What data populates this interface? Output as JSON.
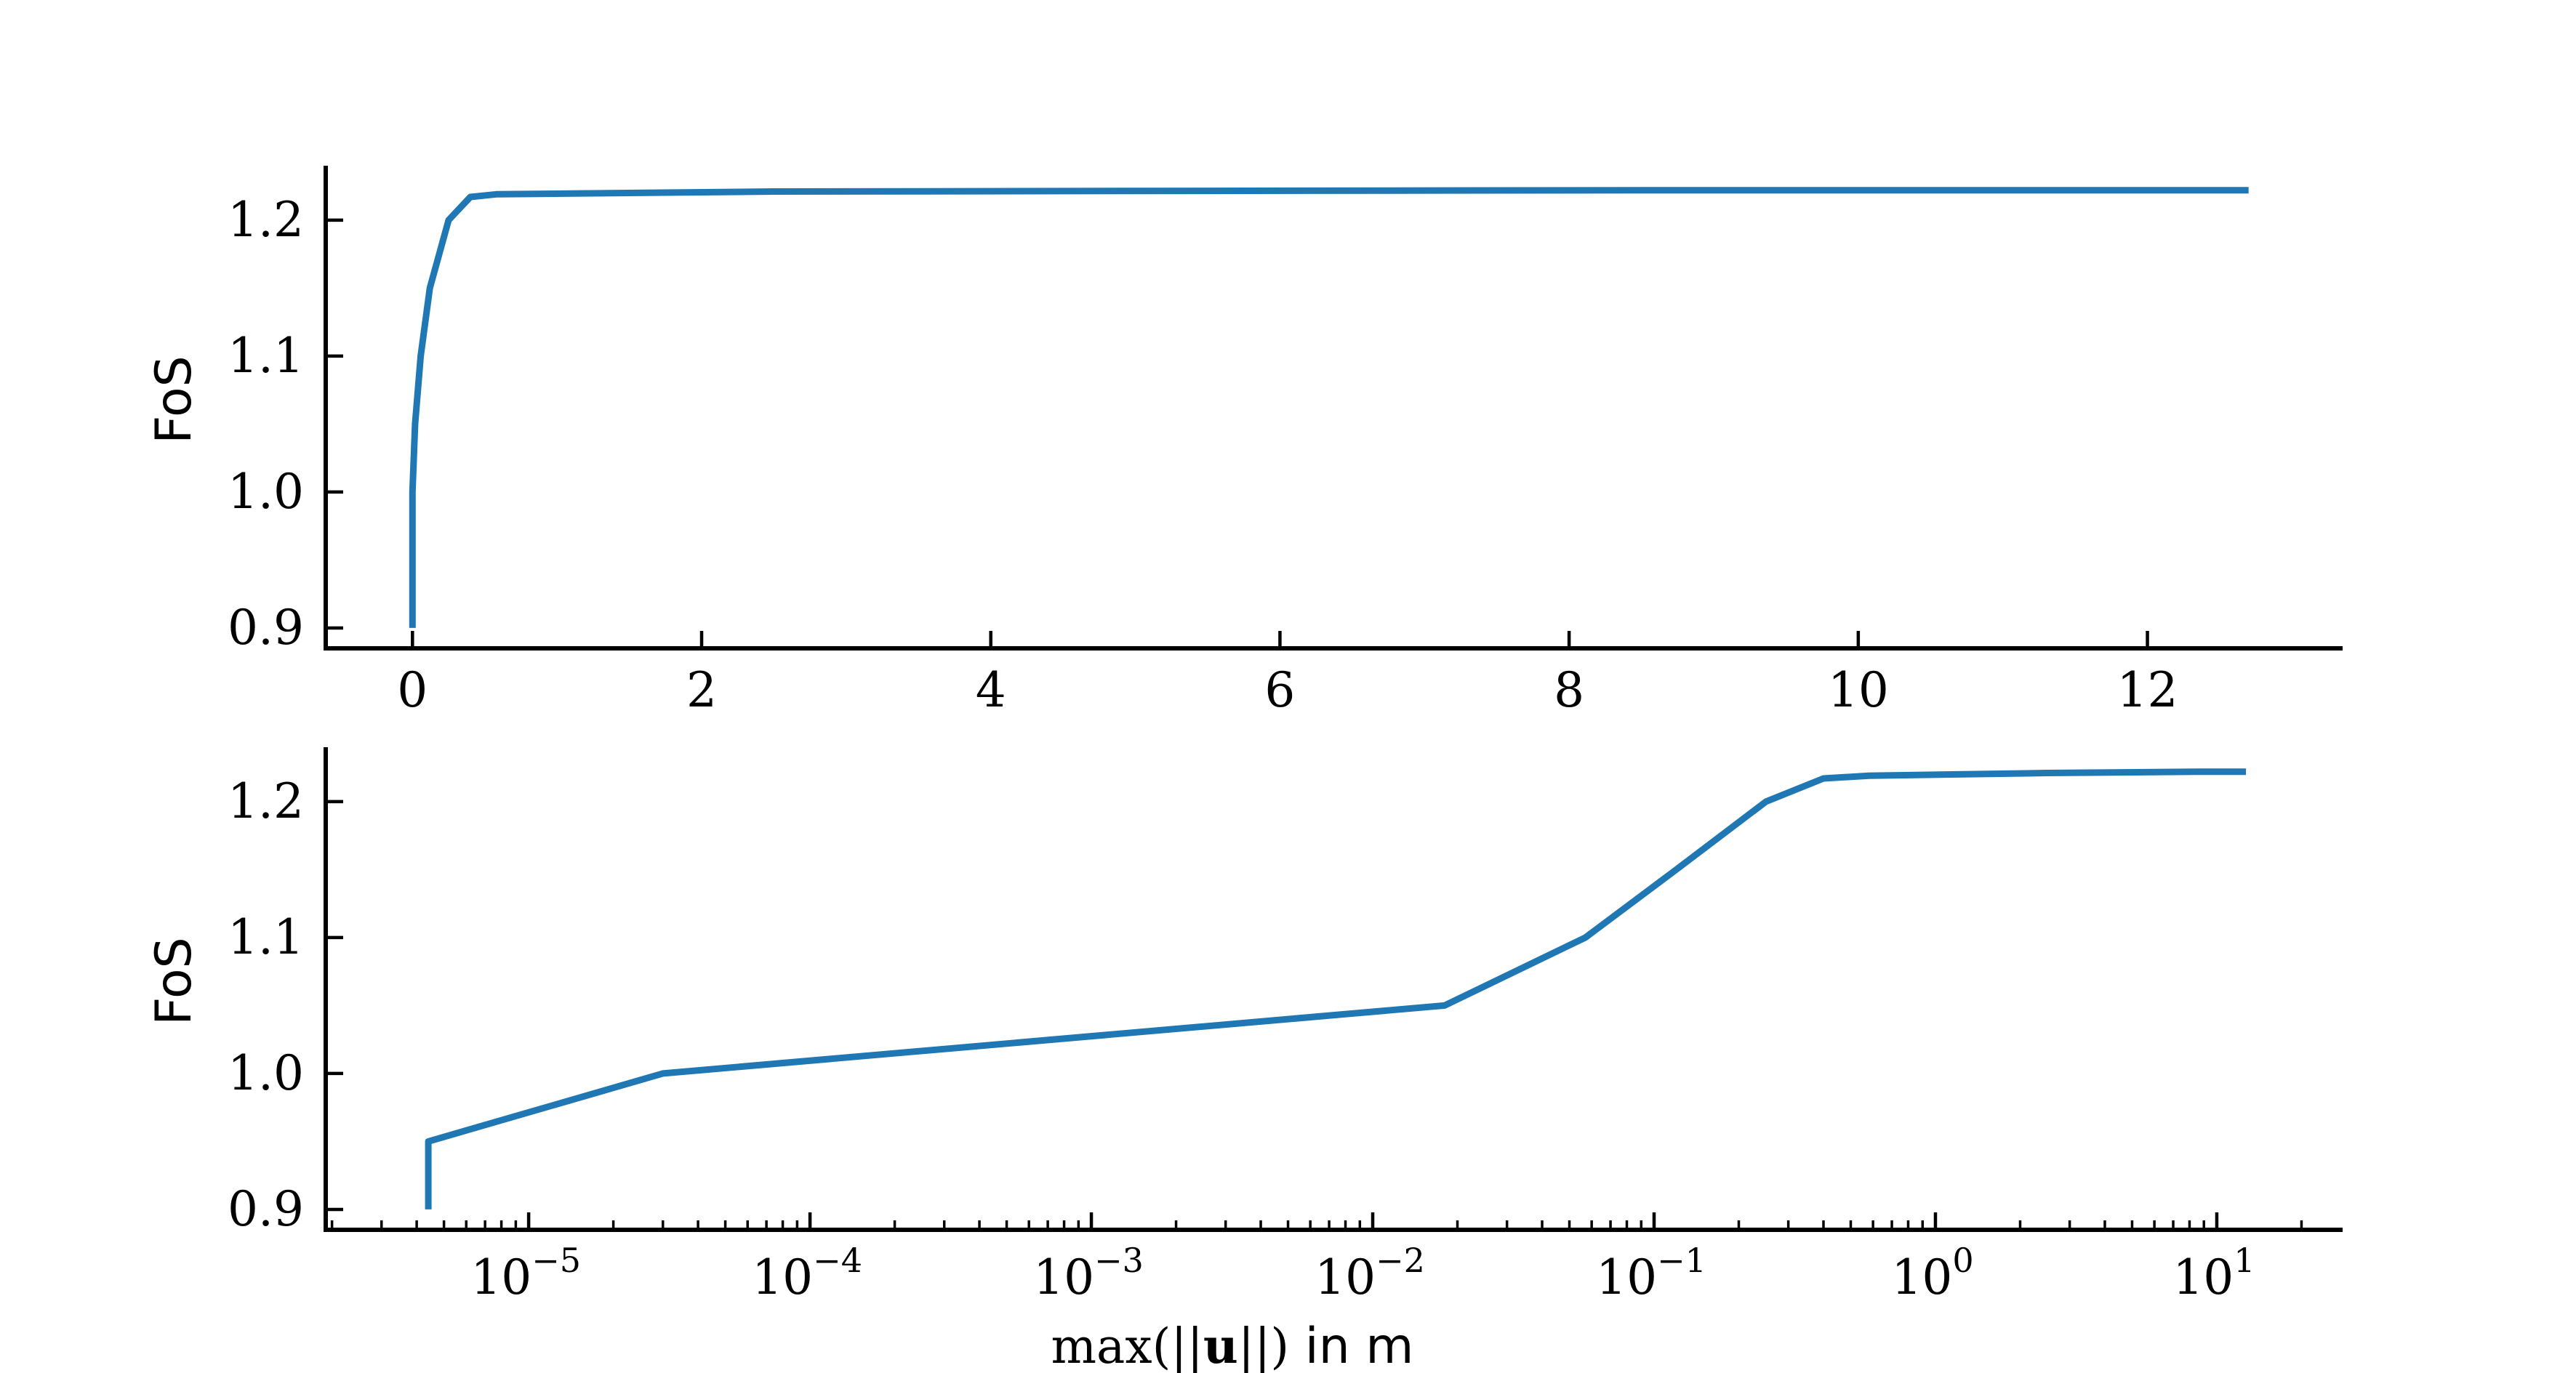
{
  "chart_data": [
    {
      "type": "line",
      "title": "",
      "xlabel": "",
      "ylabel": "FoS",
      "xscale": "linear",
      "xlim": [
        -0.6,
        13.35
      ],
      "ylim": [
        0.885,
        1.24
      ],
      "xticks": [
        0,
        2,
        4,
        6,
        8,
        10,
        12
      ],
      "xtick_labels": [
        "0",
        "2",
        "4",
        "6",
        "8",
        "10",
        "12"
      ],
      "yticks": [
        0.9,
        1.0,
        1.1,
        1.2
      ],
      "ytick_labels": [
        "0.9",
        "1.0",
        "1.1",
        "1.2"
      ],
      "grid": false,
      "series": [
        {
          "color": "#1f77b4",
          "x": [
            4.4e-06,
            4.4e-06,
            3e-05,
            0.018,
            0.057,
            0.12,
            0.25,
            0.4,
            0.58,
            2.5,
            8.5,
            12.7
          ],
          "y": [
            0.9,
            0.95,
            1.0,
            1.05,
            1.1,
            1.15,
            1.2,
            1.217,
            1.219,
            1.221,
            1.222,
            1.222
          ]
        }
      ]
    },
    {
      "type": "line",
      "title": "",
      "xlabel": "max(||u||) in m",
      "ylabel": "FoS",
      "xscale": "log",
      "xlim": [
        1.9e-06,
        28
      ],
      "ylim": [
        0.885,
        1.24
      ],
      "xticks": [
        1e-05,
        0.0001,
        0.001,
        0.01,
        0.1,
        1,
        10
      ],
      "xtick_labels": [
        {
          "base": "10",
          "exp": "−5"
        },
        {
          "base": "10",
          "exp": "−4"
        },
        {
          "base": "10",
          "exp": "−3"
        },
        {
          "base": "10",
          "exp": "−2"
        },
        {
          "base": "10",
          "exp": "−1"
        },
        {
          "base": "10",
          "exp": "0"
        },
        {
          "base": "10",
          "exp": "1"
        }
      ],
      "yticks": [
        0.9,
        1.0,
        1.1,
        1.2
      ],
      "ytick_labels": [
        "0.9",
        "1.0",
        "1.1",
        "1.2"
      ],
      "grid": false,
      "series": [
        {
          "color": "#1f77b4",
          "x": [
            4.4e-06,
            4.4e-06,
            3e-05,
            0.018,
            0.057,
            0.12,
            0.25,
            0.4,
            0.58,
            2.5,
            8.5,
            12.7
          ],
          "y": [
            0.9,
            0.95,
            1.0,
            1.05,
            1.1,
            1.15,
            1.2,
            1.217,
            1.219,
            1.221,
            1.222,
            1.222
          ]
        }
      ]
    }
  ],
  "xlabel_parts": {
    "prefix": "max(||",
    "bold": "u",
    "suffix": "||)",
    "unit_text": " in m"
  }
}
